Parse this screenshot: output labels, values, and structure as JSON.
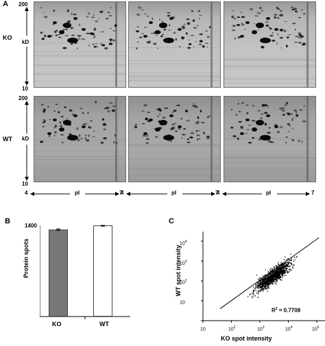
{
  "panel_a": {
    "letter": "A",
    "row_labels": [
      "KO",
      "WT"
    ],
    "y_top": "200",
    "y_unit": "kD",
    "y_bottom": "10",
    "x_left": "4",
    "x_unit": "pI",
    "x_right": "7"
  },
  "panel_b": {
    "letter": "B",
    "ylabel": "Protein spots",
    "ytick": "1400",
    "categories": [
      "KO",
      "WT"
    ]
  },
  "panel_c": {
    "letter": "C",
    "ylabel": "WT spot intensity",
    "xlabel": "KO spot intensity",
    "r2_label": "R",
    "r2_sup": "2",
    "r2_value": " = 0.7708",
    "y_ticks": [
      {
        "base": "10",
        "exp": ""
      },
      {
        "base": "10",
        "exp": "2"
      },
      {
        "base": "10",
        "exp": "3"
      },
      {
        "base": "10",
        "exp": "4"
      }
    ],
    "x_ticks": [
      {
        "base": "10",
        "exp": ""
      },
      {
        "base": "10",
        "exp": "2"
      },
      {
        "base": "10",
        "exp": "3"
      },
      {
        "base": "10",
        "exp": "4"
      },
      {
        "base": "10",
        "exp": "5"
      }
    ]
  },
  "chart_data": [
    {
      "type": "bar",
      "panel": "B",
      "title": "",
      "xlabel": "",
      "ylabel": "Protein spots",
      "categories": [
        "KO",
        "WT"
      ],
      "values": [
        1340,
        1395
      ],
      "errors": [
        12,
        6
      ],
      "colors": [
        "#777777",
        "#ffffff"
      ],
      "ylim": [
        0,
        1400
      ],
      "grid": false
    },
    {
      "type": "scatter",
      "panel": "C",
      "title": "",
      "xlabel": "KO spot intensity",
      "ylabel": "WT spot intensity",
      "xscale": "log",
      "yscale": "log",
      "xlim": [
        1,
        100000
      ],
      "ylim": [
        1,
        30000
      ],
      "n_points": 1200,
      "point_cloud_center": [
        300,
        200
      ],
      "fit_line": {
        "x": [
          4,
          12000
        ],
        "y": [
          4,
          15000
        ]
      },
      "r2": 0.7708,
      "grid": false
    }
  ]
}
